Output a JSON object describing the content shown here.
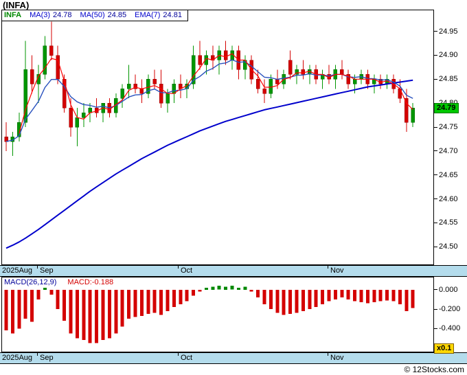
{
  "header": {
    "title": "(INFA)"
  },
  "footer": {
    "copyright": "© 12Stocks.com"
  },
  "colors": {
    "up": "#009600",
    "down": "#d40000",
    "ma3": "#ff0000",
    "ma50": "#0000cc",
    "ema7": "#2a52be",
    "band": "#b4dcec",
    "badge": "#00c800",
    "scale_badge": "#ffd700",
    "navy": "#000099",
    "macd_pos": "#008800",
    "legend_symbol": "#008800",
    "legend_label": "#0000cc",
    "legend_value": "#000099"
  },
  "chart_data": [
    {
      "type": "candlestick",
      "symbol": "INFA",
      "legend": {
        "symbol": "INFA",
        "items": [
          {
            "label": "MA(3)",
            "value": "24.78"
          },
          {
            "label": "MA(50)",
            "value": "24.85"
          },
          {
            "label": "EMA(7)",
            "value": "24.81"
          }
        ]
      },
      "last_price": "24.79",
      "ylim": [
        24.463,
        24.994
      ],
      "y_ticks": [
        "24.95",
        "24.90",
        "24.85",
        "24.80",
        "24.75",
        "24.70",
        "24.65",
        "24.60",
        "24.55",
        "24.50"
      ],
      "x_axis": {
        "labels": [
          {
            "text": "2025Aug",
            "x": 3,
            "tick": false
          },
          {
            "text": "Sep",
            "x": 58,
            "tick": true
          },
          {
            "text": "Oct",
            "x": 263,
            "tick": true
          },
          {
            "text": "Nov",
            "x": 481,
            "tick": true
          }
        ]
      },
      "candles": [
        [
          24.73,
          24.76,
          24.7,
          24.72
        ],
        [
          24.72,
          24.74,
          24.69,
          24.73
        ],
        [
          24.73,
          24.78,
          24.72,
          24.76
        ],
        [
          24.76,
          24.93,
          24.75,
          24.87
        ],
        [
          24.87,
          24.9,
          24.82,
          24.84
        ],
        [
          24.84,
          24.88,
          24.8,
          24.86
        ],
        [
          24.86,
          24.94,
          24.85,
          24.92
        ],
        [
          24.92,
          24.97,
          24.89,
          24.9
        ],
        [
          24.9,
          24.92,
          24.84,
          24.85
        ],
        [
          24.85,
          24.86,
          24.78,
          24.79
        ],
        [
          24.79,
          24.81,
          24.73,
          24.75
        ],
        [
          24.75,
          24.79,
          24.71,
          24.77
        ],
        [
          24.77,
          24.8,
          24.75,
          24.78
        ],
        [
          24.78,
          24.8,
          24.76,
          24.79
        ],
        [
          24.79,
          24.81,
          24.77,
          24.78
        ],
        [
          24.78,
          24.8,
          24.76,
          24.8
        ],
        [
          24.8,
          24.81,
          24.77,
          24.78
        ],
        [
          24.78,
          24.82,
          24.77,
          24.81
        ],
        [
          24.81,
          24.84,
          24.79,
          24.83
        ],
        [
          24.83,
          24.88,
          24.81,
          24.84
        ],
        [
          24.84,
          24.86,
          24.82,
          24.83
        ],
        [
          24.83,
          24.85,
          24.8,
          24.82
        ],
        [
          24.82,
          24.86,
          24.81,
          24.85
        ],
        [
          24.85,
          24.87,
          24.83,
          24.84
        ],
        [
          24.84,
          24.87,
          24.79,
          24.8
        ],
        [
          24.8,
          24.83,
          24.78,
          24.82
        ],
        [
          24.82,
          24.85,
          24.8,
          24.84
        ],
        [
          24.84,
          24.86,
          24.81,
          24.83
        ],
        [
          24.83,
          24.85,
          24.81,
          24.84
        ],
        [
          24.84,
          24.92,
          24.83,
          24.9
        ],
        [
          24.9,
          24.93,
          24.87,
          24.88
        ],
        [
          24.88,
          24.91,
          24.86,
          24.9
        ],
        [
          24.9,
          24.92,
          24.87,
          24.89
        ],
        [
          24.89,
          24.92,
          24.86,
          24.91
        ],
        [
          24.91,
          24.93,
          24.88,
          24.89
        ],
        [
          24.89,
          24.92,
          24.87,
          24.91
        ],
        [
          24.91,
          24.92,
          24.85,
          24.87
        ],
        [
          24.87,
          24.9,
          24.85,
          24.89
        ],
        [
          24.89,
          24.9,
          24.84,
          24.85
        ],
        [
          24.85,
          24.87,
          24.82,
          24.83
        ],
        [
          24.83,
          24.85,
          24.8,
          24.82
        ],
        [
          24.82,
          24.86,
          24.81,
          24.85
        ],
        [
          24.85,
          24.87,
          24.83,
          24.84
        ],
        [
          24.84,
          24.87,
          24.83,
          24.86
        ],
        [
          24.89,
          24.91,
          24.85,
          24.86
        ],
        [
          24.86,
          24.88,
          24.84,
          24.87
        ],
        [
          24.87,
          24.89,
          24.85,
          24.86
        ],
        [
          24.86,
          24.88,
          24.84,
          24.87
        ],
        [
          24.87,
          24.88,
          24.84,
          24.85
        ],
        [
          24.85,
          24.87,
          24.83,
          24.86
        ],
        [
          24.86,
          24.88,
          24.84,
          24.85
        ],
        [
          24.85,
          24.88,
          24.83,
          24.87
        ],
        [
          24.87,
          24.89,
          24.85,
          24.86
        ],
        [
          24.86,
          24.87,
          24.83,
          24.84
        ],
        [
          24.84,
          24.86,
          24.82,
          24.85
        ],
        [
          24.85,
          24.87,
          24.84,
          24.86
        ],
        [
          24.86,
          24.87,
          24.83,
          24.84
        ],
        [
          24.84,
          24.86,
          24.82,
          24.85
        ],
        [
          24.85,
          24.86,
          24.83,
          24.84
        ],
        [
          24.84,
          24.86,
          24.83,
          24.85
        ],
        [
          24.85,
          24.86,
          24.82,
          24.83
        ],
        [
          24.83,
          24.85,
          24.8,
          24.81
        ],
        [
          24.81,
          24.83,
          24.74,
          24.76
        ],
        [
          24.76,
          24.8,
          24.75,
          24.79
        ]
      ],
      "ma50": [
        24.497,
        24.503,
        24.51,
        24.518,
        24.527,
        24.536,
        24.546,
        24.556,
        24.566,
        24.576,
        24.586,
        24.596,
        24.606,
        24.616,
        24.625,
        24.634,
        24.643,
        24.652,
        24.66,
        24.668,
        24.676,
        24.684,
        24.691,
        24.698,
        24.705,
        24.712,
        24.718,
        24.724,
        24.73,
        24.736,
        24.742,
        24.747,
        24.752,
        24.757,
        24.762,
        24.766,
        24.77,
        24.774,
        24.778,
        24.782,
        24.786,
        24.789,
        24.792,
        24.795,
        24.798,
        24.801,
        24.804,
        24.807,
        24.81,
        24.813,
        24.816,
        24.819,
        24.822,
        24.825,
        24.828,
        24.831,
        24.834,
        24.836,
        24.838,
        24.84,
        24.842,
        24.844,
        24.846,
        24.848
      ]
    },
    {
      "type": "bar",
      "title": "MACD(26,12,9)",
      "value_label": "MACD:-0.188",
      "scale_badge": "x0.1",
      "ylim": [
        -0.639,
        0.126
      ],
      "y_ticks": [
        "0.000",
        "-0.200",
        "-0.400"
      ],
      "values": [
        -0.42,
        -0.45,
        -0.4,
        -0.3,
        -0.33,
        -0.1,
        0.02,
        -0.05,
        -0.2,
        -0.32,
        -0.45,
        -0.5,
        -0.52,
        -0.55,
        -0.55,
        -0.52,
        -0.5,
        -0.45,
        -0.38,
        -0.3,
        -0.28,
        -0.27,
        -0.25,
        -0.24,
        -0.26,
        -0.22,
        -0.18,
        -0.15,
        -0.12,
        -0.06,
        -0.02,
        0.02,
        0.03,
        0.04,
        0.03,
        0.04,
        0.02,
        0.03,
        -0.02,
        -0.08,
        -0.15,
        -0.2,
        -0.24,
        -0.26,
        -0.25,
        -0.24,
        -0.22,
        -0.2,
        -0.18,
        -0.15,
        -0.12,
        -0.1,
        -0.08,
        -0.1,
        -0.12,
        -0.13,
        -0.14,
        -0.13,
        -0.12,
        -0.11,
        -0.12,
        -0.15,
        -0.22,
        -0.19
      ]
    }
  ]
}
